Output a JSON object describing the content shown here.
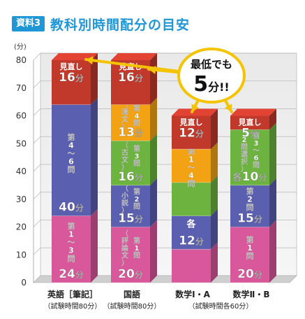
{
  "header": {
    "badge": "資料3",
    "title": "教科別時間配分の目安"
  },
  "chart_data": {
    "type": "bar",
    "stacked": true,
    "y_unit": "(分)",
    "ylim": [
      0,
      80
    ],
    "yticks": [
      "0",
      "10",
      "20",
      "30",
      "40",
      "50",
      "60",
      "70",
      "80"
    ],
    "grid": true,
    "categories": [
      {
        "name": "英語［筆記］",
        "note": "（試験時間80分）"
      },
      {
        "name": "国語",
        "note": "（試験時間80分）"
      },
      {
        "name": "数学Ⅰ・A",
        "note": ""
      },
      {
        "name": "数学Ⅱ・B",
        "note": ""
      }
    ],
    "shared_note": "（試験時間各60分）",
    "bars": [
      {
        "segments": [
          {
            "value": 24,
            "color": "#d9579b",
            "label": "第1〜3問",
            "value_label": "24分"
          },
          {
            "value": 40,
            "color": "#5b5fb0",
            "label": "第4〜6問",
            "value_label": "40分"
          },
          {
            "value": 16,
            "color": "#c0392b",
            "label": "見直し",
            "value_label": "16分"
          }
        ]
      },
      {
        "segments": [
          {
            "value": 20,
            "color": "#d9579b",
            "label": "第1問",
            "sublabel": "（評論文）",
            "value_label": "20分"
          },
          {
            "value": 15,
            "color": "#5b5fb0",
            "label": "第2問",
            "sublabel": "（小説）",
            "value_label": "15分"
          },
          {
            "value": 16,
            "color": "#6db33f",
            "label": "第3問",
            "sublabel": "（古文）",
            "value_label": "16分"
          },
          {
            "value": 13,
            "color": "#f3a214",
            "label": "第4問",
            "sublabel": "（漢文）",
            "value_label": "13分"
          },
          {
            "value": 16,
            "color": "#c0392b",
            "label": "見直し",
            "value_label": "16分"
          }
        ]
      },
      {
        "segments": [
          {
            "value": 12,
            "color": "#d9579b",
            "label": "",
            "value_label": ""
          },
          {
            "value": 12,
            "color": "#5b5fb0",
            "label": "各",
            "value_label": "12分"
          },
          {
            "value": 12,
            "color": "#6db33f",
            "label": "",
            "value_label": ""
          },
          {
            "value": 12,
            "color": "#f3a214",
            "label": "第1〜4問",
            "value_label": ""
          },
          {
            "value": 12,
            "color": "#c0392b",
            "label": "見直し",
            "value_label": "12分"
          }
        ]
      },
      {
        "segments": [
          {
            "value": 20,
            "color": "#d9579b",
            "label": "第1問",
            "value_label": "20分"
          },
          {
            "value": 15,
            "color": "#5b5fb0",
            "label": "第2問",
            "value_label": "15分"
          },
          {
            "value": 20,
            "color": "#6db33f",
            "label": "第3〜6問",
            "sublabel": "（2問選択）",
            "value_label": "各10分"
          },
          {
            "value": 5,
            "color": "#c0392b",
            "label": "見直し",
            "value_label": "5分"
          }
        ]
      }
    ],
    "callout": {
      "line1": "最低でも",
      "value": "5",
      "unit": "分!!"
    }
  }
}
